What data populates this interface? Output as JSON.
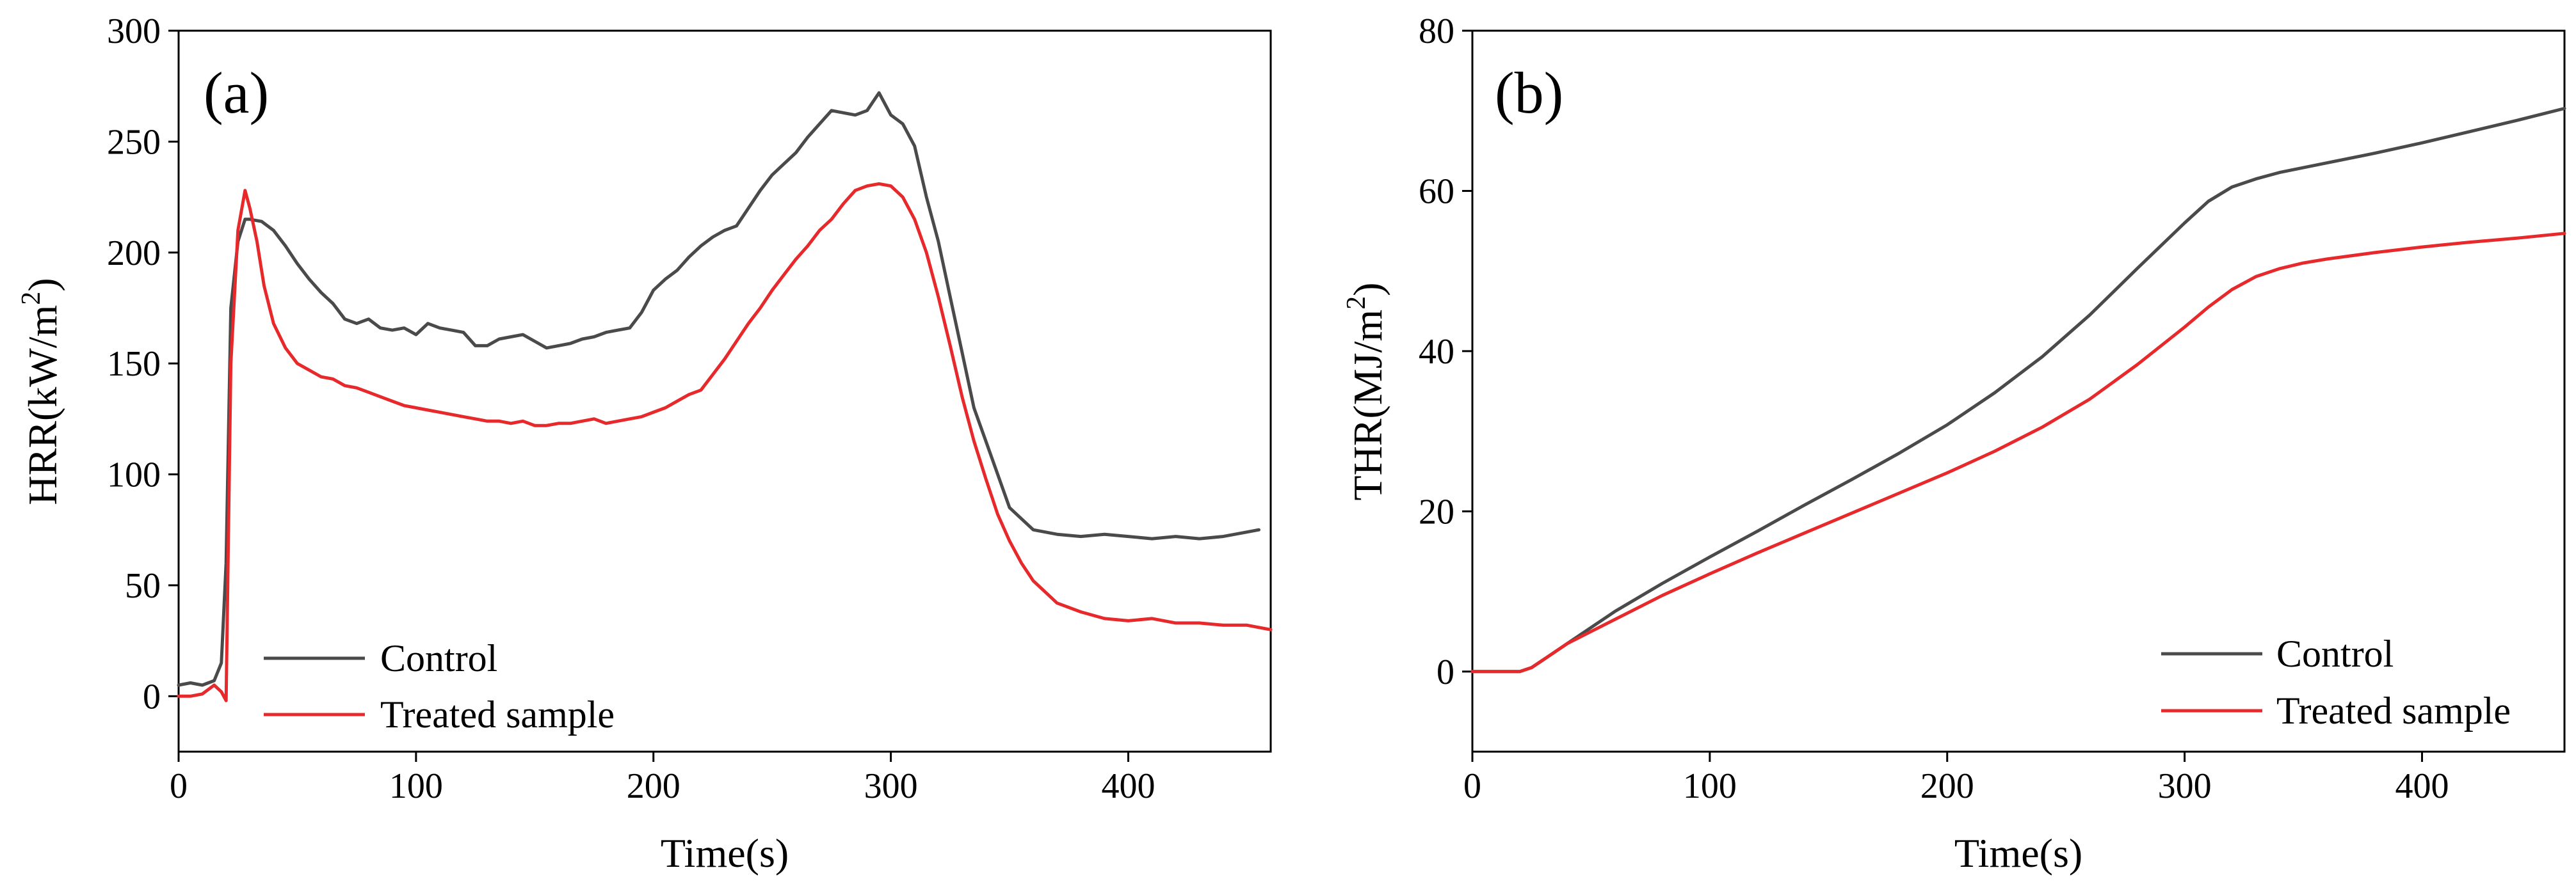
{
  "chart_data": [
    {
      "type": "line",
      "panel_label": "(a)",
      "xlabel": "Time(s)",
      "ylabel": "HRR(kW/m",
      "ylabel_sup": "2",
      "ylabel_close": ")",
      "xlim": [
        0,
        460
      ],
      "ylim": [
        -25,
        300
      ],
      "xticks": [
        0,
        100,
        200,
        300,
        400
      ],
      "yticks": [
        0,
        50,
        100,
        150,
        200,
        250,
        300
      ],
      "legend_position": "bottom-left",
      "series": [
        {
          "name": "Control",
          "color": "#4a4a4a",
          "x": [
            0,
            5,
            10,
            15,
            18,
            20,
            22,
            25,
            28,
            30,
            35,
            40,
            45,
            50,
            55,
            60,
            65,
            70,
            75,
            80,
            85,
            90,
            95,
            100,
            105,
            110,
            115,
            120,
            125,
            130,
            135,
            140,
            145,
            150,
            155,
            160,
            165,
            170,
            175,
            180,
            185,
            190,
            195,
            200,
            205,
            210,
            215,
            220,
            225,
            230,
            235,
            240,
            245,
            250,
            255,
            260,
            265,
            270,
            275,
            280,
            285,
            290,
            295,
            300,
            305,
            310,
            315,
            320,
            325,
            330,
            335,
            340,
            345,
            350,
            355,
            360,
            365,
            370,
            380,
            390,
            400,
            410,
            420,
            430,
            440,
            450,
            455
          ],
          "y": [
            5,
            6,
            5,
            7,
            15,
            60,
            175,
            205,
            215,
            215,
            214,
            210,
            203,
            195,
            188,
            182,
            177,
            170,
            168,
            170,
            166,
            165,
            166,
            163,
            168,
            166,
            165,
            164,
            158,
            158,
            161,
            162,
            163,
            160,
            157,
            158,
            159,
            161,
            162,
            164,
            165,
            166,
            173,
            183,
            188,
            192,
            198,
            203,
            207,
            210,
            212,
            220,
            228,
            235,
            240,
            245,
            252,
            258,
            264,
            263,
            262,
            264,
            272,
            262,
            258,
            248,
            225,
            205,
            180,
            155,
            130,
            115,
            100,
            85,
            80,
            75,
            74,
            73,
            72,
            73,
            72,
            71,
            72,
            71,
            72,
            74,
            75
          ]
        },
        {
          "name": "Treated sample",
          "color": "#e8292b",
          "x": [
            0,
            5,
            10,
            15,
            18,
            20,
            22,
            25,
            28,
            30,
            33,
            36,
            40,
            45,
            50,
            55,
            60,
            65,
            70,
            75,
            80,
            85,
            90,
            95,
            100,
            105,
            110,
            115,
            120,
            125,
            130,
            135,
            140,
            145,
            150,
            155,
            160,
            165,
            170,
            175,
            180,
            185,
            190,
            195,
            200,
            205,
            210,
            215,
            220,
            225,
            230,
            235,
            240,
            245,
            250,
            255,
            260,
            265,
            270,
            275,
            280,
            285,
            290,
            295,
            300,
            305,
            310,
            315,
            320,
            325,
            330,
            335,
            340,
            345,
            350,
            355,
            360,
            365,
            370,
            380,
            390,
            400,
            410,
            420,
            430,
            440,
            450,
            460
          ],
          "y": [
            0,
            0,
            1,
            5,
            2,
            -2,
            150,
            210,
            228,
            220,
            205,
            185,
            168,
            157,
            150,
            147,
            144,
            143,
            140,
            139,
            137,
            135,
            133,
            131,
            130,
            129,
            128,
            127,
            126,
            125,
            124,
            124,
            123,
            124,
            122,
            122,
            123,
            123,
            124,
            125,
            123,
            124,
            125,
            126,
            128,
            130,
            133,
            136,
            138,
            145,
            152,
            160,
            168,
            175,
            183,
            190,
            197,
            203,
            210,
            215,
            222,
            228,
            230,
            231,
            230,
            225,
            215,
            200,
            180,
            158,
            135,
            115,
            98,
            82,
            70,
            60,
            52,
            47,
            42,
            38,
            35,
            34,
            35,
            33,
            33,
            32,
            32,
            30
          ]
        }
      ]
    },
    {
      "type": "line",
      "panel_label": "(b)",
      "xlabel": "Time(s)",
      "ylabel": "THR(MJ/m",
      "ylabel_sup": "2",
      "ylabel_close": ")",
      "xlim": [
        0,
        460
      ],
      "ylim": [
        -10,
        80
      ],
      "xticks": [
        0,
        100,
        200,
        300,
        400
      ],
      "yticks": [
        0,
        20,
        40,
        60,
        80
      ],
      "legend_position": "bottom-right",
      "series": [
        {
          "name": "Control",
          "color": "#4a4a4a",
          "x": [
            0,
            10,
            20,
            25,
            30,
            40,
            50,
            60,
            80,
            100,
            120,
            140,
            160,
            180,
            200,
            220,
            240,
            260,
            280,
            300,
            310,
            320,
            330,
            340,
            350,
            360,
            380,
            400,
            420,
            440,
            460
          ],
          "y": [
            0,
            0,
            0,
            0.5,
            1.5,
            3.5,
            5.5,
            7.5,
            11,
            14.3,
            17.5,
            20.8,
            24,
            27.3,
            30.8,
            34.8,
            39.3,
            44.5,
            50.3,
            56,
            58.7,
            60.5,
            61.5,
            62.3,
            62.9,
            63.5,
            64.7,
            66,
            67.4,
            68.8,
            70.3
          ]
        },
        {
          "name": "Treated sample",
          "color": "#e8292b",
          "x": [
            0,
            10,
            20,
            25,
            30,
            40,
            50,
            60,
            80,
            100,
            120,
            140,
            160,
            180,
            200,
            220,
            240,
            260,
            280,
            300,
            310,
            320,
            330,
            340,
            350,
            360,
            380,
            400,
            420,
            440,
            460
          ],
          "y": [
            0,
            0,
            0,
            0.5,
            1.5,
            3.5,
            5,
            6.5,
            9.5,
            12.2,
            14.8,
            17.3,
            19.8,
            22.3,
            24.8,
            27.5,
            30.5,
            34,
            38.3,
            43,
            45.5,
            47.7,
            49.3,
            50.3,
            51,
            51.5,
            52.3,
            53,
            53.6,
            54.1,
            54.7
          ]
        }
      ]
    }
  ]
}
